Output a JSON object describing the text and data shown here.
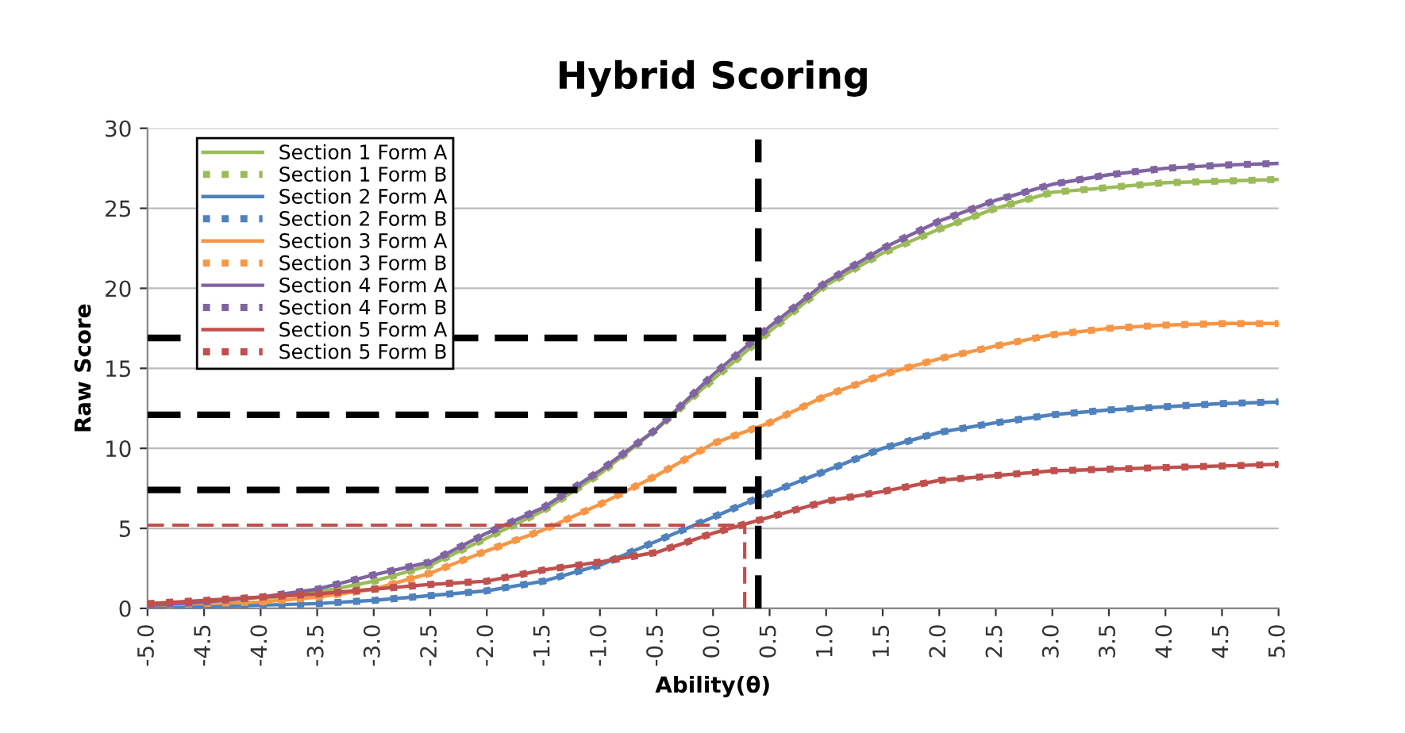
{
  "chart_data": {
    "type": "line",
    "title": "Hybrid Scoring",
    "xlabel": "Ability(θ)",
    "ylabel": "Raw Score",
    "x": [
      -5,
      -4.5,
      -4,
      -3.5,
      -3,
      -2.5,
      -2,
      -1.5,
      -1,
      -0.5,
      0,
      0.5,
      1,
      1.5,
      2,
      2.5,
      3,
      3.5,
      4,
      4.5,
      5
    ],
    "xlim": [
      -5,
      5
    ],
    "xticks": [
      {
        "value": -5,
        "label": "-5.0"
      },
      {
        "value": -4.5,
        "label": "-4.5"
      },
      {
        "value": -4,
        "label": "-4.0"
      },
      {
        "value": -3.5,
        "label": "-3.5"
      },
      {
        "value": -3,
        "label": "-3.0"
      },
      {
        "value": -2.5,
        "label": "-2.5"
      },
      {
        "value": -2,
        "label": "-2.0"
      },
      {
        "value": -1.5,
        "label": "-1.5"
      },
      {
        "value": -1,
        "label": "-1.0"
      },
      {
        "value": -0.5,
        "label": "-0.5"
      },
      {
        "value": 0,
        "label": "0.0"
      },
      {
        "value": 0.5,
        "label": "0.5"
      },
      {
        "value": 1,
        "label": "1.0"
      },
      {
        "value": 1.5,
        "label": "1.5"
      },
      {
        "value": 2,
        "label": "2.0"
      },
      {
        "value": 2.5,
        "label": "2.5"
      },
      {
        "value": 3,
        "label": "3.0"
      },
      {
        "value": 3.5,
        "label": "3.5"
      },
      {
        "value": 4,
        "label": "4.0"
      },
      {
        "value": 4.5,
        "label": "4.5"
      },
      {
        "value": 5,
        "label": "5.0"
      }
    ],
    "ylim": [
      0,
      30
    ],
    "yticks": [
      0,
      5,
      10,
      15,
      20,
      25,
      30
    ],
    "grid": "y",
    "legend": "top left",
    "series": [
      {
        "name": "Section 1 Form A",
        "color": "#9bbb59",
        "line_style": "solid",
        "values": [
          null,
          null,
          0.6,
          1.0,
          1.7,
          2.7,
          4.4,
          6.1,
          8.4,
          11.2,
          14.3,
          17.3,
          20.2,
          22.2,
          23.7,
          25.0,
          26.0,
          26.3,
          26.6,
          26.7,
          26.8
        ]
      },
      {
        "name": "Section 1 Form B",
        "color": "#9bbb59",
        "line_style": "dotted",
        "values": [
          null,
          null,
          0.6,
          1.0,
          1.7,
          2.7,
          4.4,
          6.1,
          8.4,
          11.2,
          14.3,
          17.3,
          20.2,
          22.2,
          23.7,
          25.0,
          26.0,
          26.3,
          26.6,
          26.7,
          26.8
        ]
      },
      {
        "name": "Section 2 Form A",
        "color": "#4f81bd",
        "line_style": "solid",
        "values": [
          0.1,
          0.1,
          0.2,
          0.3,
          0.5,
          0.8,
          1.1,
          1.7,
          2.7,
          4.2,
          5.7,
          7.2,
          8.6,
          10.0,
          11.0,
          11.6,
          12.1,
          12.4,
          12.6,
          12.8,
          12.9
        ]
      },
      {
        "name": "Section 2 Form B",
        "color": "#4f81bd",
        "line_style": "dotted",
        "values": [
          0.1,
          0.1,
          0.2,
          0.3,
          0.5,
          0.8,
          1.1,
          1.7,
          2.7,
          4.2,
          5.7,
          7.2,
          8.6,
          10.0,
          11.0,
          11.6,
          12.1,
          12.4,
          12.6,
          12.8,
          12.9
        ]
      },
      {
        "name": "Section 3 Form A",
        "color": "#f79646",
        "line_style": "solid",
        "values": [
          0.2,
          0.3,
          0.4,
          0.7,
          1.2,
          2.2,
          3.6,
          4.9,
          6.5,
          8.3,
          10.3,
          11.6,
          13.3,
          14.6,
          15.6,
          16.4,
          17.1,
          17.5,
          17.7,
          17.8,
          17.8
        ]
      },
      {
        "name": "Section 3 Form B",
        "color": "#f79646",
        "line_style": "dotted",
        "values": [
          0.2,
          0.3,
          0.4,
          0.7,
          1.2,
          2.2,
          3.6,
          4.9,
          6.5,
          8.3,
          10.3,
          11.6,
          13.3,
          14.6,
          15.6,
          16.4,
          17.1,
          17.5,
          17.7,
          17.8,
          17.8
        ]
      },
      {
        "name": "Section 4 Form A",
        "color": "#8064a2",
        "line_style": "solid",
        "values": [
          0.2,
          0.4,
          0.7,
          1.2,
          2.1,
          2.9,
          4.7,
          6.3,
          8.6,
          11.2,
          14.6,
          17.6,
          20.4,
          22.5,
          24.2,
          25.5,
          26.5,
          27.1,
          27.5,
          27.7,
          27.8
        ]
      },
      {
        "name": "Section 4 Form B",
        "color": "#8064a2",
        "line_style": "dotted",
        "values": [
          0.2,
          0.4,
          0.7,
          1.2,
          2.1,
          2.9,
          4.7,
          6.3,
          8.6,
          11.2,
          14.6,
          17.6,
          20.4,
          22.5,
          24.2,
          25.5,
          26.5,
          27.1,
          27.5,
          27.7,
          27.8
        ]
      },
      {
        "name": "Section 5 Form A",
        "color": "#c0504d",
        "line_style": "solid",
        "values": [
          0.3,
          0.5,
          0.7,
          0.9,
          1.2,
          1.5,
          1.7,
          2.4,
          2.9,
          3.5,
          4.7,
          5.7,
          6.7,
          7.3,
          8.0,
          8.3,
          8.6,
          8.7,
          8.8,
          8.9,
          9.0
        ]
      },
      {
        "name": "Section 5 Form B",
        "color": "#c0504d",
        "line_style": "dotted",
        "values": [
          0.3,
          0.5,
          0.7,
          0.9,
          1.2,
          1.5,
          1.7,
          2.4,
          2.9,
          3.5,
          4.7,
          5.7,
          6.7,
          7.3,
          8.0,
          8.3,
          8.6,
          8.7,
          8.8,
          8.9,
          9.0
        ]
      },
      {
        "color": "#000000",
        "line_style": "dashed",
        "x": [
          -5,
          0.4
        ],
        "values": [
          16.9,
          16.9
        ]
      },
      {
        "color": "#000000",
        "line_style": "dashed",
        "x": [
          -5,
          0.4
        ],
        "values": [
          12.1,
          12.1
        ]
      },
      {
        "color": "#000000",
        "line_style": "dashed",
        "x": [
          -5,
          0.4
        ],
        "values": [
          7.4,
          7.4
        ]
      },
      {
        "color": "#000000",
        "line_style": "dashed",
        "x": [
          0.4,
          0.4
        ],
        "values": [
          0,
          29.3
        ]
      },
      {
        "color": "#c0504d",
        "line_style": "dashed",
        "x": [
          -5,
          0.28
        ],
        "values": [
          5.2,
          5.2
        ]
      },
      {
        "color": "#c0504d",
        "line_style": "dashed",
        "x": [
          0.28,
          0.28
        ],
        "values": [
          0,
          5.2
        ]
      }
    ]
  }
}
